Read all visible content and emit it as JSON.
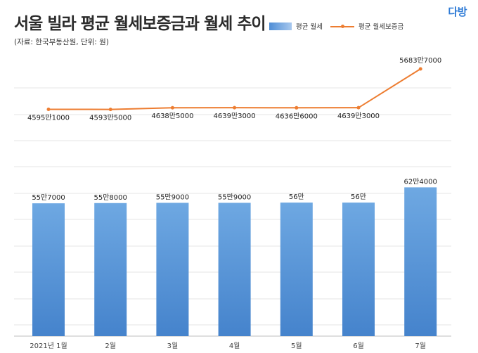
{
  "title": "서울 빌라 평균 월세보증금과 월세 추이",
  "subtitle": "(자료: 한국부동산원, 단위: 원)",
  "brand": "다방",
  "colors": {
    "bar": "#5b9bd5",
    "line": "#ed7d31"
  },
  "chart_data": {
    "type": "bar",
    "title": "서울 빌라 평균 월세보증금과 월세 추이",
    "categories": [
      "2021년 1월",
      "2월",
      "3월",
      "4월",
      "5월",
      "6월",
      "7월"
    ],
    "series": [
      {
        "name": "평균 월세",
        "type": "bar",
        "values": [
          557000,
          558000,
          559000,
          559000,
          560000,
          560000,
          624000
        ],
        "labels": [
          "55만7000",
          "55만8000",
          "55만9000",
          "55만9000",
          "56만",
          "56만",
          "62만4000"
        ]
      },
      {
        "name": "평균 월세보증금",
        "type": "line",
        "values": [
          45951000,
          45935000,
          46385000,
          46393000,
          46366000,
          46393000,
          56837000
        ],
        "labels": [
          "4595만1000",
          "4593만5000",
          "4638만5000",
          "4639만3000",
          "4636만6000",
          "4639만3000",
          "5683만7000"
        ]
      }
    ],
    "grid": true,
    "legend_position": "top-right"
  }
}
